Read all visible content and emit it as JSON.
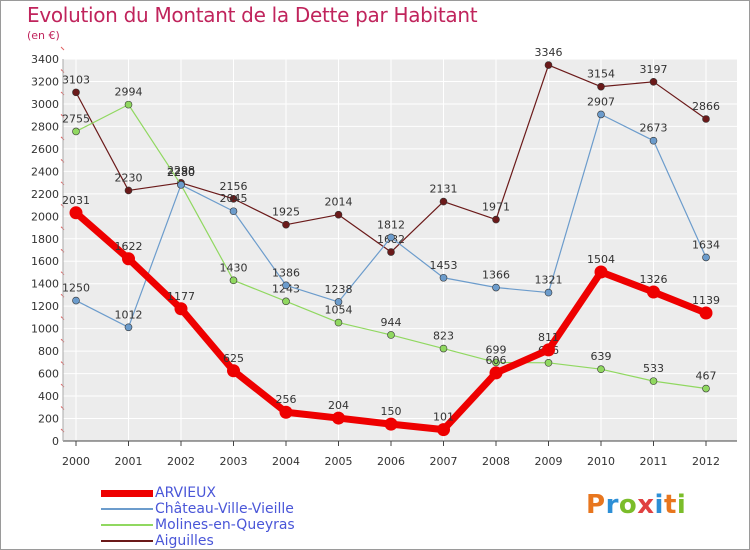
{
  "header": {
    "title": "Evolution du Montant de la Dette par Habitant",
    "subtitle": "(en €)"
  },
  "logo": {
    "text": "Proxiti",
    "letters": [
      {
        "ch": "P",
        "color": "#e8761e"
      },
      {
        "ch": "r",
        "color": "#2d8fd6"
      },
      {
        "ch": "o",
        "color": "#7bbd2a"
      },
      {
        "ch": "x",
        "color": "#e04040"
      },
      {
        "ch": "i",
        "color": "#2d8fd6"
      },
      {
        "ch": "t",
        "color": "#e8761e"
      },
      {
        "ch": "i",
        "color": "#7bbd2a"
      }
    ]
  },
  "chart_data": {
    "type": "line",
    "title": "Evolution du Montant de la Dette par Habitant",
    "subtitle": "(en €)",
    "xlabel": "",
    "ylabel": "",
    "categories": [
      "2000",
      "2001",
      "2002",
      "2003",
      "2004",
      "2005",
      "2006",
      "2007",
      "2008",
      "2009",
      "2010",
      "2011",
      "2012"
    ],
    "ylim": [
      0,
      3400
    ],
    "yticks": [
      0,
      200,
      400,
      600,
      800,
      1000,
      1200,
      1400,
      1600,
      1800,
      2000,
      2200,
      2400,
      2600,
      2800,
      3000,
      3200,
      3400
    ],
    "grid": true,
    "legend_position": "bottom-left",
    "series": [
      {
        "name": "Aiguilles",
        "color": "#6b1a1a",
        "width": 1.2,
        "marker": 3.5,
        "values": [
          3103,
          2230,
          2298,
          2156,
          1925,
          2014,
          1682,
          2131,
          1971,
          3346,
          3154,
          3197,
          2866
        ],
        "labels": [
          "3103",
          "2230",
          "2298",
          "2156",
          "1925",
          "2014",
          "1682",
          "2131",
          "1971",
          "3346",
          "3154",
          "3197",
          "2866"
        ]
      },
      {
        "name": "Molines-en-Queyras",
        "color": "#90d860",
        "width": 1.2,
        "marker": 3.5,
        "values": [
          2755,
          2994,
          2280,
          1430,
          1243,
          1054,
          944,
          823,
          699,
          696,
          639,
          533,
          467
        ],
        "labels": [
          "2755",
          "2994",
          "2280",
          "1430",
          "1243",
          "1054",
          "944",
          "823",
          "699",
          "696",
          "639",
          "533",
          "467"
        ]
      },
      {
        "name": "Château-Ville-Vieille",
        "color": "#6c9ccc",
        "width": 1.2,
        "marker": 3.5,
        "values": [
          1250,
          1012,
          2280,
          2045,
          1386,
          1238,
          1812,
          1453,
          1366,
          1321,
          2907,
          2673,
          1634
        ],
        "labels": [
          "1250",
          "1012",
          "2280",
          "2045",
          "1386",
          "1238",
          "1812",
          "1453",
          "1366",
          "1321",
          "2907",
          "2673",
          "1634"
        ]
      },
      {
        "name": "ARVIEUX",
        "color": "#ee0000",
        "width": 7,
        "marker": 6.5,
        "values": [
          2031,
          1622,
          1177,
          625,
          256,
          204,
          150,
          101,
          606,
          811,
          1504,
          1326,
          1139
        ],
        "labels": [
          "2031",
          "1622",
          "1177",
          "625",
          "256",
          "204",
          "150",
          "101",
          "606",
          "811",
          "1504",
          "1326",
          "1139"
        ]
      }
    ],
    "legend": [
      {
        "name": "ARVIEUX",
        "color": "#ee0000",
        "thick": 7
      },
      {
        "name": "Château-Ville-Vieille",
        "color": "#6c9ccc",
        "thick": 2
      },
      {
        "name": "Molines-en-Queyras",
        "color": "#90d860",
        "thick": 2
      },
      {
        "name": "Aiguilles",
        "color": "#6b1a1a",
        "thick": 2
      }
    ]
  }
}
